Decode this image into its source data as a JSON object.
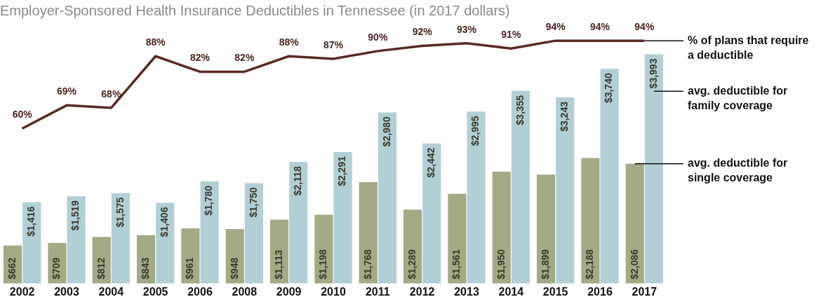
{
  "chart_data": {
    "type": "bar",
    "title": "Employer-Sponsored Health Insurance Deductibles in Tennessee (in 2017 dollars)",
    "categories": [
      "2002",
      "2003",
      "2004",
      "2005",
      "2006",
      "2008",
      "2009",
      "2010",
      "2011",
      "2012",
      "2013",
      "2014",
      "2015",
      "2016",
      "2017"
    ],
    "series": [
      {
        "name": "avg. deductible for single coverage",
        "color": "#a3aa85",
        "values": [
          662,
          709,
          812,
          843,
          961,
          948,
          1113,
          1198,
          1768,
          1289,
          1561,
          1950,
          1899,
          2188,
          2086
        ],
        "value_labels": [
          "$662",
          "$709",
          "$812",
          "$843",
          "$961",
          "$948",
          "$1,113",
          "$1,198",
          "$1,768",
          "$1,289",
          "$1,561",
          "$1,950",
          "$1,899",
          "$2,188",
          "$2,086"
        ]
      },
      {
        "name": "avg. deductible for family coverage",
        "color": "#b2cfd5",
        "values": [
          1416,
          1519,
          1575,
          1406,
          1780,
          1750,
          2118,
          2291,
          2980,
          2442,
          2995,
          3355,
          3243,
          3740,
          3993
        ],
        "value_labels": [
          "$1,416",
          "$1,519",
          "$1,575",
          "$1,406",
          "$1,780",
          "$1,750",
          "$2,118",
          "$2,291",
          "$2,980",
          "$2,442",
          "$2,995",
          "$3,355",
          "$3,243",
          "$3,740",
          "$3,993"
        ]
      },
      {
        "name": "% of plans that require a deductible",
        "type": "line",
        "axis": "y2",
        "color": "#5a2a24",
        "values": [
          60,
          69,
          68,
          88,
          82,
          82,
          88,
          87,
          90,
          92,
          93,
          91,
          94,
          94,
          94
        ],
        "value_labels": [
          "60%",
          "69%",
          "68%",
          "88%",
          "82%",
          "82%",
          "88%",
          "87%",
          "90%",
          "92%",
          "93%",
          "91%",
          "94%",
          "94%",
          "94%"
        ]
      }
    ],
    "tick_labels": "x",
    "grid": false,
    "legend": false,
    "marker": "none"
  }
}
